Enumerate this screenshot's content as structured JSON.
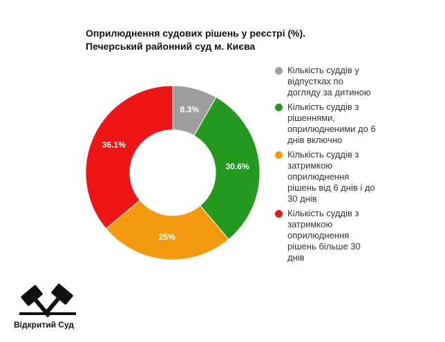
{
  "chart_data": {
    "type": "donut",
    "title": "Оприлюднення судових рішень у реєстрі (%).",
    "subtitle": "Печерський районний суд м. Києва",
    "categories": [
      "Кількість суддів у відпустках по догляду за дитиною",
      "Кількість суддів з рішеннями, оприлюдненими до 6 днів включно",
      "Кількість суддів з затримкою оприлюднення рішень від 6 днів і до 30 днів",
      "Кількість суддів з затримкою оприлюднення рішень більше 30 днів"
    ],
    "values": [
      8.3,
      30.6,
      25,
      36.1
    ],
    "value_labels": [
      "8.3%",
      "30.6%",
      "25%",
      "36.1%"
    ],
    "colors": [
      "#9e9e9e",
      "#239a1d",
      "#f59a0f",
      "#f01515"
    ],
    "legend": "right"
  },
  "logo": {
    "text": "Відкритий Суд"
  }
}
